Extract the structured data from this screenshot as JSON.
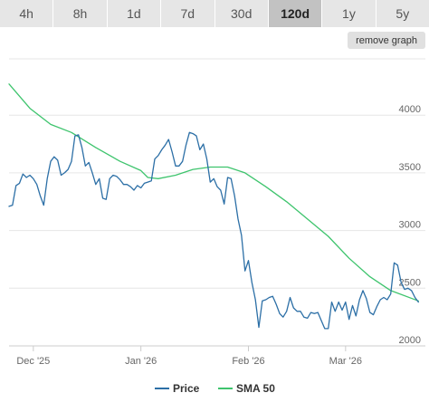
{
  "range_tabs": [
    {
      "label": "4h",
      "active": false
    },
    {
      "label": "8h",
      "active": false
    },
    {
      "label": "1d",
      "active": false
    },
    {
      "label": "7d",
      "active": false
    },
    {
      "label": "30d",
      "active": false
    },
    {
      "label": "120d",
      "active": true
    },
    {
      "label": "1y",
      "active": false
    },
    {
      "label": "5y",
      "active": false
    }
  ],
  "remove_graph_label": "remove graph",
  "chart_data": {
    "type": "line",
    "title": "",
    "xlabel": "",
    "ylabel": "",
    "x_range": [
      "2025-11-24",
      "2026-03-24"
    ],
    "ylim": [
      2000,
      4300
    ],
    "y_ticks": [
      2000,
      2500,
      3000,
      3500,
      4000
    ],
    "y_tick_labels": [
      "2000",
      "2500",
      "3000",
      "3500",
      "4000"
    ],
    "x_ticks": [
      {
        "date": "2025-12-01",
        "label": "Dec '25"
      },
      {
        "date": "2026-01-01",
        "label": "Jan '26"
      },
      {
        "date": "2026-02-01",
        "label": "Feb '26"
      },
      {
        "date": "2026-03-01",
        "label": "Mar '26"
      }
    ],
    "grid": true,
    "legend_position": "bottom-center",
    "series": [
      {
        "name": "Price",
        "color": "#2c6fa6",
        "points": [
          [
            "2025-11-24",
            3210
          ],
          [
            "2025-11-25",
            3220
          ],
          [
            "2025-11-26",
            3390
          ],
          [
            "2025-11-27",
            3410
          ],
          [
            "2025-11-28",
            3490
          ],
          [
            "2025-11-29",
            3460
          ],
          [
            "2025-11-30",
            3480
          ],
          [
            "2025-12-01",
            3450
          ],
          [
            "2025-12-02",
            3400
          ],
          [
            "2025-12-03",
            3300
          ],
          [
            "2025-12-04",
            3220
          ],
          [
            "2025-12-05",
            3450
          ],
          [
            "2025-12-06",
            3600
          ],
          [
            "2025-12-07",
            3640
          ],
          [
            "2025-12-08",
            3610
          ],
          [
            "2025-12-09",
            3480
          ],
          [
            "2025-12-10",
            3500
          ],
          [
            "2025-12-11",
            3530
          ],
          [
            "2025-12-12",
            3600
          ],
          [
            "2025-12-13",
            3820
          ],
          [
            "2025-12-14",
            3830
          ],
          [
            "2025-12-15",
            3720
          ],
          [
            "2025-12-16",
            3560
          ],
          [
            "2025-12-17",
            3590
          ],
          [
            "2025-12-18",
            3500
          ],
          [
            "2025-12-19",
            3400
          ],
          [
            "2025-12-20",
            3450
          ],
          [
            "2025-12-21",
            3280
          ],
          [
            "2025-12-22",
            3270
          ],
          [
            "2025-12-23",
            3450
          ],
          [
            "2025-12-24",
            3480
          ],
          [
            "2025-12-25",
            3470
          ],
          [
            "2025-12-26",
            3440
          ],
          [
            "2025-12-27",
            3400
          ],
          [
            "2025-12-28",
            3400
          ],
          [
            "2025-12-29",
            3380
          ],
          [
            "2025-12-30",
            3350
          ],
          [
            "2025-12-31",
            3390
          ],
          [
            "2026-01-01",
            3370
          ],
          [
            "2026-01-02",
            3410
          ],
          [
            "2026-01-03",
            3420
          ],
          [
            "2026-01-04",
            3430
          ],
          [
            "2026-01-05",
            3620
          ],
          [
            "2026-01-06",
            3650
          ],
          [
            "2026-01-07",
            3700
          ],
          [
            "2026-01-08",
            3740
          ],
          [
            "2026-01-09",
            3790
          ],
          [
            "2026-01-10",
            3680
          ],
          [
            "2026-01-11",
            3560
          ],
          [
            "2026-01-12",
            3560
          ],
          [
            "2026-01-13",
            3600
          ],
          [
            "2026-01-14",
            3740
          ],
          [
            "2026-01-15",
            3850
          ],
          [
            "2026-01-16",
            3840
          ],
          [
            "2026-01-17",
            3820
          ],
          [
            "2026-01-18",
            3700
          ],
          [
            "2026-01-19",
            3750
          ],
          [
            "2026-01-20",
            3620
          ],
          [
            "2026-01-21",
            3420
          ],
          [
            "2026-01-22",
            3450
          ],
          [
            "2026-01-23",
            3380
          ],
          [
            "2026-01-24",
            3350
          ],
          [
            "2026-01-25",
            3230
          ],
          [
            "2026-01-26",
            3460
          ],
          [
            "2026-01-27",
            3450
          ],
          [
            "2026-01-28",
            3300
          ],
          [
            "2026-01-29",
            3100
          ],
          [
            "2026-01-30",
            2960
          ],
          [
            "2026-01-31",
            2650
          ],
          [
            "2026-02-01",
            2740
          ],
          [
            "2026-02-02",
            2550
          ],
          [
            "2026-02-03",
            2400
          ],
          [
            "2026-02-04",
            2160
          ],
          [
            "2026-02-05",
            2390
          ],
          [
            "2026-02-06",
            2400
          ],
          [
            "2026-02-07",
            2420
          ],
          [
            "2026-02-08",
            2430
          ],
          [
            "2026-02-09",
            2360
          ],
          [
            "2026-02-10",
            2280
          ],
          [
            "2026-02-11",
            2250
          ],
          [
            "2026-02-12",
            2300
          ],
          [
            "2026-02-13",
            2420
          ],
          [
            "2026-02-14",
            2330
          ],
          [
            "2026-02-15",
            2300
          ],
          [
            "2026-02-16",
            2300
          ],
          [
            "2026-02-17",
            2250
          ],
          [
            "2026-02-18",
            2240
          ],
          [
            "2026-02-19",
            2290
          ],
          [
            "2026-02-20",
            2280
          ],
          [
            "2026-02-21",
            2290
          ],
          [
            "2026-02-22",
            2220
          ],
          [
            "2026-02-23",
            2150
          ],
          [
            "2026-02-24",
            2150
          ],
          [
            "2026-02-25",
            2380
          ],
          [
            "2026-02-26",
            2300
          ],
          [
            "2026-02-27",
            2380
          ],
          [
            "2026-02-28",
            2310
          ],
          [
            "2026-03-01",
            2380
          ],
          [
            "2026-03-02",
            2230
          ],
          [
            "2026-03-03",
            2350
          ],
          [
            "2026-03-04",
            2260
          ],
          [
            "2026-03-05",
            2400
          ],
          [
            "2026-03-06",
            2480
          ],
          [
            "2026-03-07",
            2410
          ],
          [
            "2026-03-08",
            2290
          ],
          [
            "2026-03-09",
            2270
          ],
          [
            "2026-03-10",
            2340
          ],
          [
            "2026-03-11",
            2400
          ],
          [
            "2026-03-12",
            2420
          ],
          [
            "2026-03-13",
            2400
          ],
          [
            "2026-03-14",
            2450
          ],
          [
            "2026-03-15",
            2720
          ],
          [
            "2026-03-16",
            2700
          ],
          [
            "2026-03-17",
            2550
          ],
          [
            "2026-03-18",
            2490
          ],
          [
            "2026-03-19",
            2500
          ],
          [
            "2026-03-20",
            2480
          ],
          [
            "2026-03-21",
            2420
          ],
          [
            "2026-03-22",
            2380
          ]
        ]
      },
      {
        "name": "SMA 50",
        "color": "#3ec46d",
        "points": [
          [
            "2025-11-24",
            4270
          ],
          [
            "2025-11-30",
            4060
          ],
          [
            "2025-12-06",
            3920
          ],
          [
            "2025-12-12",
            3850
          ],
          [
            "2025-12-19",
            3720
          ],
          [
            "2025-12-26",
            3600
          ],
          [
            "2026-01-01",
            3520
          ],
          [
            "2026-01-03",
            3460
          ],
          [
            "2026-01-06",
            3450
          ],
          [
            "2026-01-11",
            3480
          ],
          [
            "2026-01-16",
            3530
          ],
          [
            "2026-01-21",
            3550
          ],
          [
            "2026-01-26",
            3550
          ],
          [
            "2026-01-31",
            3500
          ],
          [
            "2026-02-06",
            3380
          ],
          [
            "2026-02-12",
            3250
          ],
          [
            "2026-02-18",
            3100
          ],
          [
            "2026-02-24",
            2950
          ],
          [
            "2026-03-02",
            2760
          ],
          [
            "2026-03-08",
            2600
          ],
          [
            "2026-03-14",
            2480
          ],
          [
            "2026-03-22",
            2390
          ]
        ]
      }
    ]
  }
}
